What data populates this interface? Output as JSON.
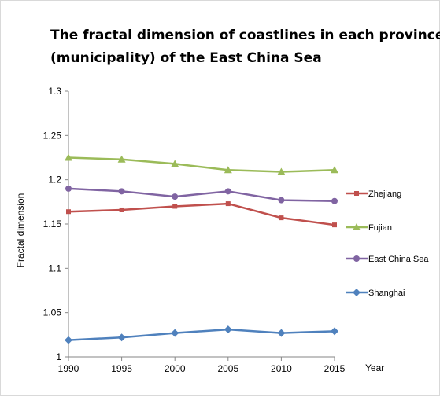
{
  "chart_data": {
    "type": "line",
    "title_lines": [
      "The fractal dimension of coastlines in each province",
      "(municipality)  of the East China Sea"
    ],
    "xlabel": "Year",
    "ylabel": "Fractal dimension",
    "categories": [
      "1990",
      "1995",
      "2000",
      "2005",
      "2010",
      "2015"
    ],
    "ylim": [
      1,
      1.3
    ],
    "yticks": [
      "1",
      "1.05",
      "1.1",
      "1.15",
      "1.2",
      "1.25",
      "1.3"
    ],
    "grid": false,
    "legend_position": "right",
    "series": [
      {
        "name": "Zhejiang",
        "color": "#c0504d",
        "marker": "square",
        "values": [
          1.164,
          1.166,
          1.17,
          1.173,
          1.157,
          1.149
        ]
      },
      {
        "name": "Fujian",
        "color": "#9bbb59",
        "marker": "triangle",
        "values": [
          1.225,
          1.223,
          1.218,
          1.211,
          1.209,
          1.211
        ]
      },
      {
        "name": "East China Sea",
        "color": "#8064a2",
        "marker": "circle",
        "values": [
          1.19,
          1.187,
          1.181,
          1.187,
          1.177,
          1.176
        ]
      },
      {
        "name": "Shanghai",
        "color": "#4f81bd",
        "marker": "diamond",
        "values": [
          1.019,
          1.022,
          1.027,
          1.031,
          1.027,
          1.029
        ]
      }
    ]
  }
}
